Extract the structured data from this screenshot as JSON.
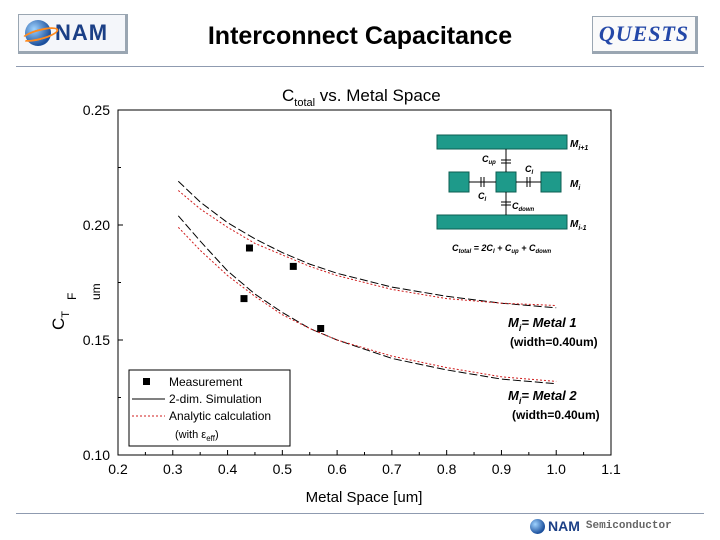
{
  "header": {
    "logo_left": "NAM",
    "title": "Interconnect Capacitance",
    "logo_right": "QUESTS"
  },
  "footer": {
    "logo": "NAM",
    "sub": "Semiconductor"
  },
  "colors": {
    "sim_line": "#000000",
    "analytic_line": "#d01c1c",
    "inset_metal": "#1e9a8a",
    "logo_blue": "#1b3f86",
    "accent_orange": "#ff8a1e"
  },
  "chart_data": {
    "type": "scatter",
    "title": "C",
    "title_sub": "total",
    "title_suffix": " vs. Metal Space",
    "xlabel": "Metal Space [um]",
    "ylabel": "C",
    "ylabel_sub": "T",
    "ylabel_units": "F",
    "ylabel_units2": "um",
    "xlim": [
      0.2,
      1.1
    ],
    "ylim": [
      0.1,
      0.25
    ],
    "xticks": [
      0.2,
      0.3,
      0.4,
      0.5,
      0.6,
      0.7,
      0.8,
      0.9,
      1.0,
      1.1
    ],
    "xtick_labels": [
      "0.2",
      "0.3",
      "0.4",
      "0.5",
      "0.6",
      "0.7",
      "0.8",
      "0.9",
      "1.0",
      "1.1"
    ],
    "yticks": [
      0.1,
      0.15,
      0.2,
      0.25
    ],
    "ytick_labels": [
      "0.10",
      "0.15",
      "0.20",
      "0.25"
    ],
    "series": [
      {
        "name": "Measurement",
        "kind": "points",
        "group": "metal1",
        "x": [
          0.44,
          0.52
        ],
        "y": [
          0.19,
          0.182
        ]
      },
      {
        "name": "Measurement",
        "kind": "points",
        "group": "metal2",
        "x": [
          0.43,
          0.57
        ],
        "y": [
          0.168,
          0.155
        ]
      },
      {
        "name": "2-dim. Simulation",
        "kind": "line",
        "group": "metal1",
        "x": [
          0.31,
          0.35,
          0.4,
          0.45,
          0.5,
          0.55,
          0.6,
          0.7,
          0.8,
          0.9,
          1.0
        ],
        "y": [
          0.219,
          0.21,
          0.201,
          0.194,
          0.188,
          0.183,
          0.179,
          0.173,
          0.169,
          0.166,
          0.164
        ]
      },
      {
        "name": "Analytic calculation",
        "kind": "dashed",
        "group": "metal1",
        "x": [
          0.31,
          0.35,
          0.4,
          0.45,
          0.5,
          0.55,
          0.6,
          0.7,
          0.8,
          0.9,
          1.0
        ],
        "y": [
          0.215,
          0.207,
          0.199,
          0.192,
          0.187,
          0.182,
          0.178,
          0.172,
          0.168,
          0.166,
          0.165
        ]
      },
      {
        "name": "2-dim. Simulation",
        "kind": "line",
        "group": "metal2",
        "x": [
          0.31,
          0.35,
          0.4,
          0.45,
          0.5,
          0.55,
          0.6,
          0.7,
          0.8,
          0.9,
          1.0
        ],
        "y": [
          0.204,
          0.193,
          0.18,
          0.17,
          0.162,
          0.155,
          0.15,
          0.142,
          0.137,
          0.133,
          0.131
        ]
      },
      {
        "name": "Analytic calculation",
        "kind": "dashed",
        "group": "metal2",
        "x": [
          0.31,
          0.35,
          0.4,
          0.45,
          0.5,
          0.55,
          0.6,
          0.7,
          0.8,
          0.9,
          1.0
        ],
        "y": [
          0.199,
          0.189,
          0.178,
          0.169,
          0.161,
          0.155,
          0.15,
          0.143,
          0.138,
          0.134,
          0.132
        ]
      }
    ],
    "legend": {
      "placement": "bottom-left",
      "items": [
        {
          "label": "Measurement",
          "style": "square"
        },
        {
          "label": "2-dim. Simulation",
          "style": "solid"
        },
        {
          "label": "Analytic calculation",
          "style": "dashed"
        }
      ],
      "note_prefix": "(with ε",
      "note_sub": "eff",
      "note_suffix": ")"
    },
    "annotations": [
      {
        "label_main": "M",
        "label_sub": "i",
        "label_rest": "= Metal 1",
        "label_width": "(width=0.40um)"
      },
      {
        "label_main": "M",
        "label_sub": "i",
        "label_rest": "= Metal 2",
        "label_width": "(width=0.40um)"
      }
    ],
    "inset": {
      "metal_top": "M",
      "metal_top_sub": "i+1",
      "metal_mid": "M",
      "metal_mid_sub": "i",
      "metal_bot": "M",
      "metal_bot_sub": "i-1",
      "cup": "C",
      "cup_sub": "up",
      "cl_top": "C",
      "cl_top_sub": "l",
      "cl_bottom": "C",
      "cl_bottom_sub": "l",
      "cdown": "C",
      "cdown_sub": "down",
      "formula_c": "C",
      "formula_c_sub": "total",
      "formula_eq": " = 2C",
      "formula_l_sub": "l",
      "formula_plus1": " + C",
      "formula_up_sub": "up",
      "formula_plus2": " + C",
      "formula_down_sub": "down"
    }
  }
}
